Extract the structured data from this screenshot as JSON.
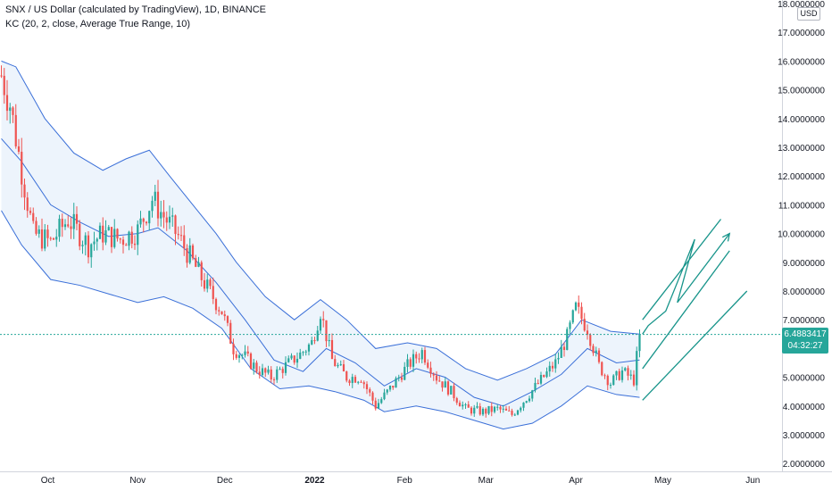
{
  "legend": {
    "symbol_line": "SNX / US Dollar (calculated by TradingView), 1D, BINANCE",
    "indicator_line": "KC (20, 2, close, Average True Range, 10)"
  },
  "price_axis": {
    "currency": "USD",
    "ticks": [
      "2.0000000",
      "3.0000000",
      "4.0000000",
      "5.0000000",
      "6.0000000",
      "7.0000000",
      "8.0000000",
      "9.0000000",
      "10.0000000",
      "11.0000000",
      "12.0000000",
      "13.0000000",
      "14.0000000",
      "15.0000000",
      "16.0000000",
      "17.0000000",
      "18.0000000"
    ]
  },
  "time_axis": {
    "ticks": [
      "Oct",
      "Nov",
      "Dec",
      "2022",
      "Feb",
      "Mar",
      "Apr",
      "May",
      "Jun"
    ]
  },
  "last_price": {
    "value": "6.4883417",
    "countdown": "04:32:27"
  },
  "colors": {
    "up": "#26a69a",
    "down": "#ef5350",
    "channel": "#3a6fd8",
    "channel_fill": "#e6f0fb",
    "drawing": "#17948a"
  },
  "chart_data": {
    "type": "candlestick",
    "interval": "1D",
    "ylim": [
      2,
      18
    ],
    "x_range": [
      "2021-09-15",
      "2022-06-05"
    ],
    "ohlc_anchors": [
      {
        "date": "2021-09-15",
        "close": 15.5
      },
      {
        "date": "2021-09-18",
        "close": 14.5
      },
      {
        "date": "2021-09-22",
        "close": 12.2
      },
      {
        "date": "2021-09-26",
        "close": 10.0
      },
      {
        "date": "2021-10-02",
        "close": 9.7
      },
      {
        "date": "2021-10-08",
        "close": 10.5
      },
      {
        "date": "2021-10-15",
        "close": 9.6
      },
      {
        "date": "2021-10-20",
        "close": 10.0
      },
      {
        "date": "2021-10-26",
        "close": 9.8
      },
      {
        "date": "2021-11-01",
        "close": 10.1
      },
      {
        "date": "2021-11-06",
        "close": 11.2
      },
      {
        "date": "2021-11-10",
        "close": 10.6
      },
      {
        "date": "2021-11-15",
        "close": 9.9
      },
      {
        "date": "2021-11-20",
        "close": 9.0
      },
      {
        "date": "2021-11-25",
        "close": 8.1
      },
      {
        "date": "2021-11-30",
        "close": 7.3
      },
      {
        "date": "2021-12-04",
        "close": 6.0
      },
      {
        "date": "2021-12-08",
        "close": 5.7
      },
      {
        "date": "2021-12-12",
        "close": 5.3
      },
      {
        "date": "2021-12-17",
        "close": 5.0
      },
      {
        "date": "2021-12-22",
        "close": 5.4
      },
      {
        "date": "2021-12-27",
        "close": 5.8
      },
      {
        "date": "2021-12-31",
        "close": 6.2
      },
      {
        "date": "2022-01-03",
        "close": 7.3
      },
      {
        "date": "2022-01-07",
        "close": 5.6
      },
      {
        "date": "2022-01-12",
        "close": 5.0
      },
      {
        "date": "2022-01-17",
        "close": 5.0
      },
      {
        "date": "2022-01-22",
        "close": 4.0
      },
      {
        "date": "2022-01-27",
        "close": 4.6
      },
      {
        "date": "2022-02-02",
        "close": 5.4
      },
      {
        "date": "2022-02-07",
        "close": 5.9
      },
      {
        "date": "2022-02-12",
        "close": 5.0
      },
      {
        "date": "2022-02-17",
        "close": 4.5
      },
      {
        "date": "2022-02-22",
        "close": 3.9
      },
      {
        "date": "2022-02-28",
        "close": 3.8
      },
      {
        "date": "2022-03-05",
        "close": 3.9
      },
      {
        "date": "2022-03-10",
        "close": 3.7
      },
      {
        "date": "2022-03-15",
        "close": 4.3
      },
      {
        "date": "2022-03-20",
        "close": 4.9
      },
      {
        "date": "2022-03-25",
        "close": 5.5
      },
      {
        "date": "2022-03-29",
        "close": 6.4
      },
      {
        "date": "2022-04-01",
        "close": 7.4
      },
      {
        "date": "2022-04-05",
        "close": 6.7
      },
      {
        "date": "2022-04-09",
        "close": 5.4
      },
      {
        "date": "2022-04-13",
        "close": 4.8
      },
      {
        "date": "2022-04-17",
        "close": 5.2
      },
      {
        "date": "2022-04-21",
        "close": 4.9
      },
      {
        "date": "2022-04-23",
        "close": 6.4883417
      }
    ],
    "keltner_channel": {
      "params": "20, 2, close, Average True Range, 10",
      "upper_anchors": [
        {
          "date": "2021-09-15",
          "value": 16.0
        },
        {
          "date": "2021-09-20",
          "value": 15.8
        },
        {
          "date": "2021-09-30",
          "value": 14.0
        },
        {
          "date": "2021-10-10",
          "value": 12.8
        },
        {
          "date": "2021-10-20",
          "value": 12.2
        },
        {
          "date": "2021-10-28",
          "value": 12.6
        },
        {
          "date": "2021-11-05",
          "value": 12.9
        },
        {
          "date": "2021-11-12",
          "value": 12.0
        },
        {
          "date": "2021-11-20",
          "value": 11.0
        },
        {
          "date": "2021-11-28",
          "value": 10.0
        },
        {
          "date": "2021-12-05",
          "value": 9.0
        },
        {
          "date": "2021-12-15",
          "value": 7.8
        },
        {
          "date": "2021-12-25",
          "value": 7.0
        },
        {
          "date": "2022-01-03",
          "value": 7.7
        },
        {
          "date": "2022-01-12",
          "value": 7.0
        },
        {
          "date": "2022-01-22",
          "value": 6.0
        },
        {
          "date": "2022-02-02",
          "value": 6.2
        },
        {
          "date": "2022-02-12",
          "value": 6.0
        },
        {
          "date": "2022-02-22",
          "value": 5.3
        },
        {
          "date": "2022-03-05",
          "value": 4.9
        },
        {
          "date": "2022-03-15",
          "value": 5.3
        },
        {
          "date": "2022-03-25",
          "value": 5.8
        },
        {
          "date": "2022-04-03",
          "value": 7.0
        },
        {
          "date": "2022-04-13",
          "value": 6.6
        },
        {
          "date": "2022-04-23",
          "value": 6.5
        }
      ],
      "middle_anchors": [
        {
          "date": "2021-09-15",
          "value": 13.3
        },
        {
          "date": "2021-09-22",
          "value": 12.5
        },
        {
          "date": "2021-10-02",
          "value": 11.0
        },
        {
          "date": "2021-10-12",
          "value": 10.4
        },
        {
          "date": "2021-10-22",
          "value": 9.9
        },
        {
          "date": "2021-11-01",
          "value": 10.0
        },
        {
          "date": "2021-11-08",
          "value": 10.2
        },
        {
          "date": "2021-11-18",
          "value": 9.4
        },
        {
          "date": "2021-11-28",
          "value": 8.3
        },
        {
          "date": "2021-12-08",
          "value": 7.0
        },
        {
          "date": "2021-12-18",
          "value": 5.6
        },
        {
          "date": "2021-12-28",
          "value": 5.2
        },
        {
          "date": "2022-01-05",
          "value": 6.0
        },
        {
          "date": "2022-01-15",
          "value": 5.5
        },
        {
          "date": "2022-01-25",
          "value": 4.7
        },
        {
          "date": "2022-02-05",
          "value": 5.3
        },
        {
          "date": "2022-02-15",
          "value": 5.0
        },
        {
          "date": "2022-02-25",
          "value": 4.3
        },
        {
          "date": "2022-03-07",
          "value": 4.0
        },
        {
          "date": "2022-03-17",
          "value": 4.5
        },
        {
          "date": "2022-03-27",
          "value": 5.1
        },
        {
          "date": "2022-04-05",
          "value": 6.0
        },
        {
          "date": "2022-04-15",
          "value": 5.5
        },
        {
          "date": "2022-04-23",
          "value": 5.6
        }
      ],
      "lower_anchors": [
        {
          "date": "2021-09-15",
          "value": 10.8
        },
        {
          "date": "2021-09-22",
          "value": 9.6
        },
        {
          "date": "2021-10-02",
          "value": 8.4
        },
        {
          "date": "2021-10-12",
          "value": 8.2
        },
        {
          "date": "2021-10-22",
          "value": 7.9
        },
        {
          "date": "2021-11-01",
          "value": 7.6
        },
        {
          "date": "2021-11-10",
          "value": 7.8
        },
        {
          "date": "2021-11-20",
          "value": 7.4
        },
        {
          "date": "2021-11-30",
          "value": 6.7
        },
        {
          "date": "2021-12-10",
          "value": 5.3
        },
        {
          "date": "2021-12-20",
          "value": 4.6
        },
        {
          "date": "2021-12-30",
          "value": 4.7
        },
        {
          "date": "2022-01-08",
          "value": 4.5
        },
        {
          "date": "2022-01-18",
          "value": 4.2
        },
        {
          "date": "2022-01-25",
          "value": 3.8
        },
        {
          "date": "2022-02-05",
          "value": 4.0
        },
        {
          "date": "2022-02-15",
          "value": 3.8
        },
        {
          "date": "2022-02-25",
          "value": 3.5
        },
        {
          "date": "2022-03-07",
          "value": 3.2
        },
        {
          "date": "2022-03-17",
          "value": 3.4
        },
        {
          "date": "2022-03-27",
          "value": 4.0
        },
        {
          "date": "2022-04-05",
          "value": 4.7
        },
        {
          "date": "2022-04-15",
          "value": 4.4
        },
        {
          "date": "2022-04-23",
          "value": 4.3
        }
      ]
    },
    "drawings": [
      {
        "name": "zigzag-arrow",
        "points": [
          {
            "date": "2022-04-24",
            "value": 6.5
          },
          {
            "date": "2022-04-26",
            "value": 6.8
          },
          {
            "date": "2022-05-02",
            "value": 7.3
          },
          {
            "date": "2022-05-12",
            "value": 9.8
          },
          {
            "date": "2022-05-06",
            "value": 7.6
          },
          {
            "date": "2022-05-24",
            "value": 10.0
          }
        ]
      },
      {
        "name": "upper-trend-line",
        "points": [
          {
            "date": "2022-04-24",
            "value": 7.0
          },
          {
            "date": "2022-05-21",
            "value": 10.5
          }
        ]
      },
      {
        "name": "middle-trend-line",
        "points": [
          {
            "date": "2022-04-24",
            "value": 5.3
          },
          {
            "date": "2022-05-24",
            "value": 9.4
          }
        ]
      },
      {
        "name": "lower-trend-line",
        "points": [
          {
            "date": "2022-04-24",
            "value": 4.2
          },
          {
            "date": "2022-05-30",
            "value": 8.0
          }
        ]
      }
    ]
  }
}
